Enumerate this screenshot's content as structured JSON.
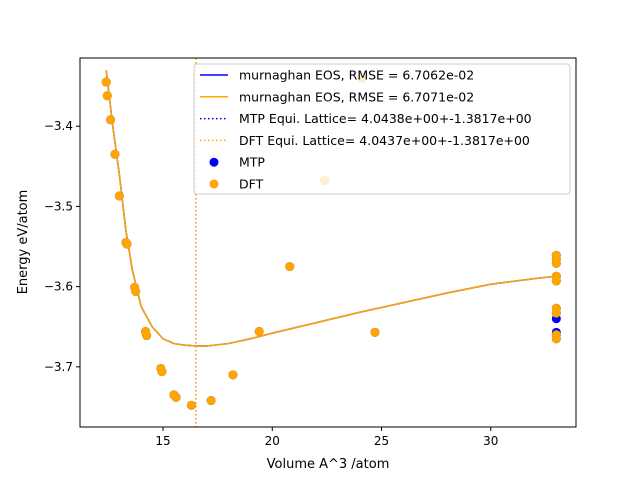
{
  "chart_data": {
    "type": "scatter",
    "title": "",
    "xlabel": "Volume  A^3 /atom",
    "ylabel": "Energy eV/atom",
    "xlim": [
      11.2,
      33.9
    ],
    "ylim": [
      -3.775,
      -3.315
    ],
    "xticks": [
      15,
      20,
      25,
      30
    ],
    "xtick_labels": [
      "15",
      "20",
      "25",
      "30"
    ],
    "yticks": [
      -3.4,
      -3.5,
      -3.6,
      -3.7
    ],
    "ytick_labels": [
      "−3.4",
      "−3.5",
      "−3.6",
      "−3.7"
    ],
    "grid": false,
    "legend_position": "top-right",
    "vline_x": 16.5,
    "legend": [
      {
        "label": "murnaghan EOS, RMSE = 6.7062e-02",
        "kind": "line",
        "style": "solid",
        "color": "#0000ff"
      },
      {
        "label": "murnaghan EOS, RMSE = 6.7071e-02",
        "kind": "line",
        "style": "solid",
        "color": "#ffa500"
      },
      {
        "label": "MTP Equi. Lattice= 4.0438e+00+-1.3817e+00",
        "kind": "line",
        "style": "dotted",
        "color": "#0000ff"
      },
      {
        "label": "DFT Equi. Lattice= 4.0437e+00+-1.3817e+00",
        "kind": "line",
        "style": "dotted",
        "color": "#ffa500"
      },
      {
        "label": "MTP",
        "kind": "marker",
        "color": "#0000ff"
      },
      {
        "label": "DFT",
        "kind": "marker",
        "color": "#ffa500"
      }
    ],
    "series": [
      {
        "name": "murnaghan EOS, RMSE = 6.7062e-02",
        "kind": "line",
        "color": "#0000ff",
        "x": [
          12.4,
          12.7,
          13.0,
          13.3,
          13.6,
          14.0,
          14.5,
          15.0,
          15.5,
          16.0,
          16.5,
          17.0,
          18.0,
          19.0,
          20.0,
          22.0,
          24.0,
          26.0,
          28.0,
          30.0,
          32.0,
          33.0
        ],
        "y": [
          -3.33,
          -3.4,
          -3.46,
          -3.53,
          -3.58,
          -3.625,
          -3.65,
          -3.665,
          -3.671,
          -3.673,
          -3.674,
          -3.674,
          -3.671,
          -3.665,
          -3.658,
          -3.645,
          -3.632,
          -3.62,
          -3.608,
          -3.597,
          -3.59,
          -3.587
        ]
      },
      {
        "name": "murnaghan EOS, RMSE = 6.7071e-02",
        "kind": "line",
        "color": "#ffa500",
        "x": [
          12.4,
          12.7,
          13.0,
          13.3,
          13.6,
          14.0,
          14.5,
          15.0,
          15.5,
          16.0,
          16.5,
          17.0,
          18.0,
          19.0,
          20.0,
          22.0,
          24.0,
          26.0,
          28.0,
          30.0,
          32.0,
          33.0
        ],
        "y": [
          -3.33,
          -3.4,
          -3.46,
          -3.53,
          -3.58,
          -3.625,
          -3.65,
          -3.665,
          -3.671,
          -3.673,
          -3.674,
          -3.674,
          -3.671,
          -3.665,
          -3.658,
          -3.645,
          -3.632,
          -3.62,
          -3.608,
          -3.597,
          -3.59,
          -3.587
        ]
      },
      {
        "name": "MTP",
        "kind": "points",
        "color": "#0000ff",
        "points": [
          [
            12.4,
            -3.345
          ],
          [
            12.45,
            -3.362
          ],
          [
            12.6,
            -3.392
          ],
          [
            12.8,
            -3.435
          ],
          [
            13.0,
            -3.487
          ],
          [
            13.3,
            -3.545
          ],
          [
            13.35,
            -3.547
          ],
          [
            13.7,
            -3.601
          ],
          [
            13.75,
            -3.606
          ],
          [
            14.2,
            -3.656
          ],
          [
            14.25,
            -3.661
          ],
          [
            14.9,
            -3.702
          ],
          [
            14.95,
            -3.706
          ],
          [
            15.5,
            -3.735
          ],
          [
            15.6,
            -3.738
          ],
          [
            16.3,
            -3.748
          ],
          [
            17.2,
            -3.742
          ],
          [
            18.2,
            -3.71
          ],
          [
            19.4,
            -3.656
          ],
          [
            20.8,
            -3.575
          ],
          [
            22.4,
            -3.468
          ],
          [
            24.1,
            -3.34
          ],
          [
            24.7,
            -3.657
          ],
          [
            33.0,
            -3.561
          ],
          [
            33.0,
            -3.566
          ],
          [
            33.0,
            -3.571
          ],
          [
            33.0,
            -3.587
          ],
          [
            33.0,
            -3.593
          ],
          [
            33.0,
            -3.627
          ],
          [
            33.0,
            -3.633
          ],
          [
            33.0,
            -3.64
          ],
          [
            33.0,
            -3.657
          ],
          [
            33.0,
            -3.66
          ],
          [
            33.0,
            -3.665
          ]
        ]
      },
      {
        "name": "DFT",
        "kind": "points",
        "color": "#ffa500",
        "points": [
          [
            12.4,
            -3.345
          ],
          [
            12.45,
            -3.362
          ],
          [
            12.6,
            -3.392
          ],
          [
            12.8,
            -3.435
          ],
          [
            13.0,
            -3.487
          ],
          [
            13.3,
            -3.545
          ],
          [
            13.35,
            -3.547
          ],
          [
            13.7,
            -3.601
          ],
          [
            13.75,
            -3.606
          ],
          [
            14.2,
            -3.656
          ],
          [
            14.25,
            -3.661
          ],
          [
            14.9,
            -3.702
          ],
          [
            14.95,
            -3.706
          ],
          [
            15.5,
            -3.735
          ],
          [
            15.6,
            -3.738
          ],
          [
            16.3,
            -3.748
          ],
          [
            17.2,
            -3.742
          ],
          [
            18.2,
            -3.71
          ],
          [
            19.4,
            -3.656
          ],
          [
            20.8,
            -3.575
          ],
          [
            22.4,
            -3.468
          ],
          [
            24.1,
            -3.34
          ],
          [
            24.7,
            -3.657
          ],
          [
            33.0,
            -3.561
          ],
          [
            33.0,
            -3.566
          ],
          [
            33.0,
            -3.571
          ],
          [
            33.0,
            -3.587
          ],
          [
            33.0,
            -3.593
          ],
          [
            33.0,
            -3.627
          ],
          [
            33.0,
            -3.633
          ],
          [
            33.0,
            -3.66
          ],
          [
            33.0,
            -3.665
          ]
        ]
      }
    ]
  }
}
